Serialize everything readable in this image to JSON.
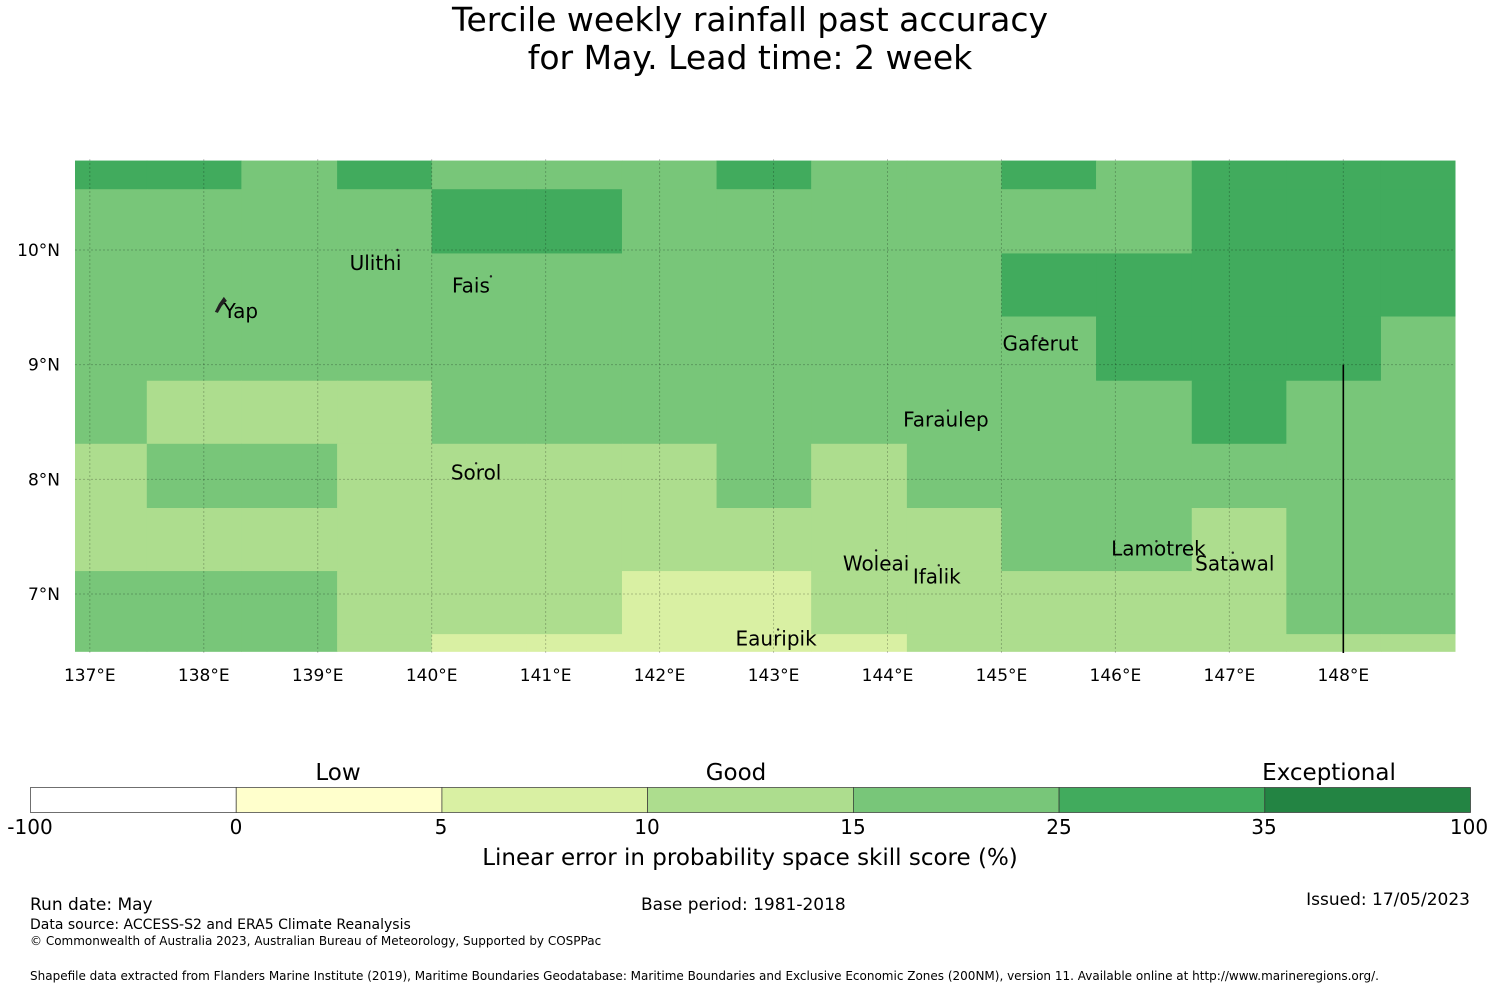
{
  "title": {
    "line1": "Tercile weekly rainfall past accuracy",
    "line2": "for May. Lead time: 2 week"
  },
  "map": {
    "lon_range": [
      136.87,
      148.98
    ],
    "lat_range": [
      6.5,
      10.78
    ],
    "lon_ticks": [
      "137°E",
      "138°E",
      "139°E",
      "140°E",
      "141°E",
      "142°E",
      "143°E",
      "144°E",
      "145°E",
      "146°E",
      "147°E",
      "148°E"
    ],
    "lat_ticks": [
      "10°N",
      "9°N",
      "8°N",
      "7°N"
    ],
    "lon_tick_values": [
      137,
      138,
      139,
      140,
      141,
      142,
      143,
      144,
      145,
      146,
      147,
      148
    ],
    "lat_tick_values": [
      10,
      9,
      8,
      7
    ],
    "colors": {
      "c0": "#ffffcc",
      "c5": "#d9f0a3",
      "c10": "#addd8e",
      "c15": "#78c679",
      "c25": "#41ab5d",
      "c35": "#238443"
    },
    "grid_lon_edges": [
      136.87,
      137.5,
      138.33,
      139.17,
      140,
      140.83,
      141.67,
      142.5,
      143.33,
      144.17,
      145,
      145.83,
      146.67,
      147.5,
      148.33,
      148.98
    ],
    "grid_lat_edges": [
      10.78,
      10.53,
      9.97,
      9.42,
      8.86,
      8.31,
      7.75,
      7.2,
      6.65,
      6.5
    ],
    "grid_rows": [
      [
        "c25",
        "c25",
        "c15",
        "c25",
        "c15",
        "c15",
        "c15",
        "c25",
        "c15",
        "c15",
        "c25",
        "c15",
        "c25",
        "c25",
        "c25"
      ],
      [
        "c15",
        "c15",
        "c15",
        "c15",
        "c25",
        "c25",
        "c15",
        "c15",
        "c15",
        "c15",
        "c15",
        "c15",
        "c25",
        "c25",
        "c25"
      ],
      [
        "c15",
        "c15",
        "c15",
        "c15",
        "c15",
        "c15",
        "c15",
        "c15",
        "c15",
        "c15",
        "c25",
        "c25",
        "c25",
        "c25",
        "c25"
      ],
      [
        "c15",
        "c15",
        "c15",
        "c15",
        "c15",
        "c15",
        "c15",
        "c15",
        "c15",
        "c15",
        "c15",
        "c25",
        "c25",
        "c25",
        "c15"
      ],
      [
        "c15",
        "c10",
        "c10",
        "c10",
        "c15",
        "c15",
        "c15",
        "c15",
        "c15",
        "c15",
        "c15",
        "c15",
        "c25",
        "c15",
        "c15"
      ],
      [
        "c10",
        "c15",
        "c15",
        "c10",
        "c10",
        "c10",
        "c10",
        "c15",
        "c10",
        "c15",
        "c15",
        "c15",
        "c15",
        "c15",
        "c15"
      ],
      [
        "c10",
        "c10",
        "c10",
        "c10",
        "c10",
        "c10",
        "c10",
        "c10",
        "c10",
        "c10",
        "c15",
        "c15",
        "c10",
        "c15",
        "c15"
      ],
      [
        "c15",
        "c15",
        "c15",
        "c10",
        "c10",
        "c10",
        "c5",
        "c5",
        "c10",
        "c10",
        "c10",
        "c10",
        "c10",
        "c15",
        "c15"
      ],
      [
        "c15",
        "c15",
        "c15",
        "c10",
        "c5",
        "c5",
        "c5",
        "c5",
        "c5",
        "c10",
        "c10",
        "c10",
        "c10",
        "c10",
        "c10"
      ]
    ],
    "islands": [
      {
        "name": "Yap",
        "lon": 138.15,
        "lat": 9.53
      },
      {
        "name": "Ulithi",
        "lon": 139.7,
        "lat": 10.0
      },
      {
        "name": "Fais",
        "lon": 140.52,
        "lat": 9.77
      },
      {
        "name": "Gaferut",
        "lon": 145.36,
        "lat": 9.23
      },
      {
        "name": "Faraulep",
        "lon": 144.53,
        "lat": 8.6
      },
      {
        "name": "Sorol",
        "lon": 140.39,
        "lat": 8.14
      },
      {
        "name": "Woleai",
        "lon": 143.9,
        "lat": 7.38
      },
      {
        "name": "Ifalik",
        "lon": 144.45,
        "lat": 7.25
      },
      {
        "name": "Lamotrek",
        "lon": 146.36,
        "lat": 7.46
      },
      {
        "name": "Satawal",
        "lon": 147.03,
        "lat": 7.36
      },
      {
        "name": "Eauripik",
        "lon": 143.04,
        "lat": 6.69
      }
    ],
    "island_labels": {
      "Yap": "Yap",
      "Ulithi": "Ulithi",
      "Fais": "Fais",
      "Gaferut": "Gaferut",
      "Faraulep": "Faraulep",
      "Sorol": "Sorol",
      "Woleai": "Woleai",
      "Ifalik": "Ifalik",
      "Lamotrek": "Lamotrek",
      "Satawal": "Satawal",
      "Eauripik": "Eauripik"
    },
    "boundary_line": {
      "lon": 148.0,
      "lat_from": 6.5,
      "lat_to": 9.0
    }
  },
  "colorbar": {
    "category_labels": [
      "Low",
      "Good",
      "Exceptional"
    ],
    "tick_labels": [
      "-100",
      "0",
      "5",
      "10",
      "15",
      "25",
      "35",
      "100"
    ],
    "segment_colors": [
      "#ffffff",
      "#ffffcc",
      "#d9f0a3",
      "#addd8e",
      "#78c679",
      "#41ab5d",
      "#238443"
    ],
    "title": "Linear error in probability space skill score (%)"
  },
  "footer": {
    "run_date": "Run date: May",
    "base_period": "Base period: 1981-2018",
    "issued": "Issued: 17/05/2023",
    "data_source": "Data source: ACCESS-S2 and ERA5 Climate Reanalysis",
    "copyright": "© Commonwealth of Australia 2023, Australian Bureau of Meteorology, Supported by COSPPac",
    "shapefile": "Shapefile data extracted from Flanders Marine Institute (2019), Maritime Boundaries Geodatabase: Maritime Boundaries and Exclusive Economic Zones (200NM), version 11. Available online at http://www.marineregions.org/."
  }
}
